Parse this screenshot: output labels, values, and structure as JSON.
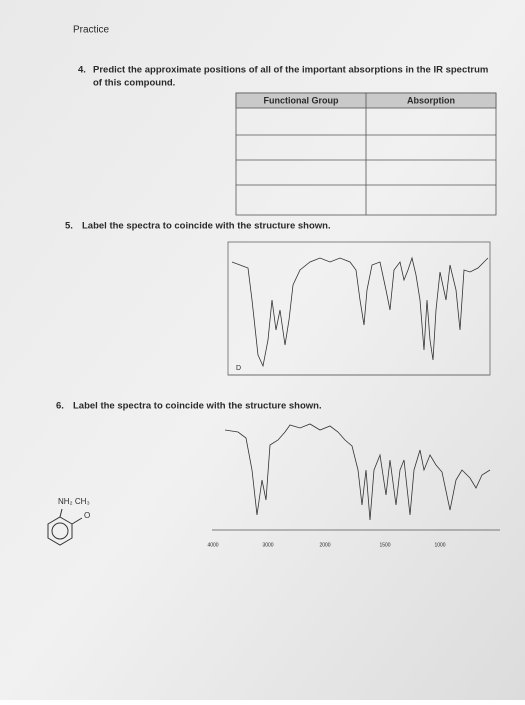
{
  "header": {
    "title": "Practice"
  },
  "questions": [
    {
      "number": "4.",
      "lines": [
        "Predict the approximate positions of all of the important absorptions in the IR spectrum",
        "of this compound."
      ]
    },
    {
      "number": "5.",
      "lines": [
        "Label the spectra to coincide with the structure shown."
      ]
    },
    {
      "number": "6.",
      "lines": [
        "Label the spectra to coincide with the structure shown."
      ]
    }
  ],
  "table": {
    "headers": [
      "Functional Group",
      "Absorption"
    ]
  },
  "spectrum_5": {
    "peak_label": "D"
  },
  "spectrum_6": {
    "axis_labels": [
      "4000",
      "3000",
      "2000",
      "1500",
      "1000"
    ]
  },
  "structure": {
    "substituents": "NH₂  CH₃",
    "oxygen": "O"
  }
}
